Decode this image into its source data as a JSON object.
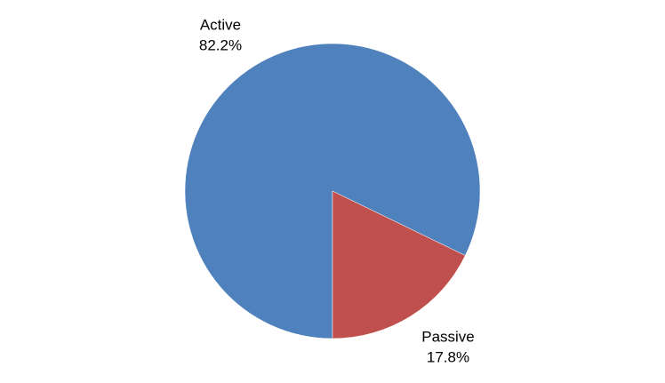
{
  "chart_data": {
    "type": "pie",
    "categories": [
      "Active",
      "Passive"
    ],
    "values": [
      82.2,
      17.8
    ],
    "value_labels": [
      "82.2%",
      "17.8%"
    ],
    "colors": [
      "#4f81bd",
      "#c0504d"
    ]
  }
}
